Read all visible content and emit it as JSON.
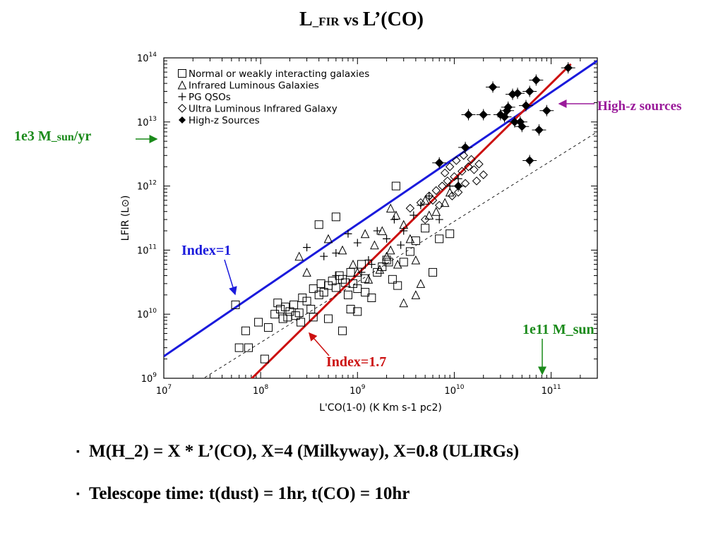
{
  "slide": {
    "title_main": "L",
    "title_sub": "_FIR",
    "title_vs": " vs ",
    "title_rest": "L’(CO)",
    "bullets": [
      "M(H_2) = X * L’(CO),   X=4 (Milkyway), X=0.8 (ULIRGs)",
      "Telescope time: t(dust) = 1hr,  t(CO) = 10hr"
    ],
    "bullet_marks": [
      "▪",
      "▪"
    ]
  },
  "annotations": {
    "sfr_main": "1e3 M",
    "sfr_sub": "_sun",
    "sfr_rest": "/yr",
    "mass": "1e11 M_sun",
    "highz": "High-z sources",
    "index1": "Index=1",
    "index17": "Index=1.7",
    "colors": {
      "green": "#1a8a1a",
      "blue": "#1a1adc",
      "red": "#cc1010",
      "purple": "#9a1a9a"
    }
  },
  "chart_data": {
    "type": "scatter",
    "xlabel": "L'CO(1-0) (K Km s-1 pc2)",
    "ylabel": "LFIR (L⊙)",
    "xscale": "log",
    "yscale": "log",
    "xlim": [
      10000000,
      300000000000
    ],
    "ylim": [
      1000000000,
      100000000000000
    ],
    "xticks": [
      {
        "value": 10000000,
        "base": "10",
        "exp": "7"
      },
      {
        "value": 100000000,
        "base": "10",
        "exp": "8"
      },
      {
        "value": 1000000000,
        "base": "10",
        "exp": "9"
      },
      {
        "value": 10000000000,
        "base": "10",
        "exp": "10"
      },
      {
        "value": 100000000000,
        "base": "10",
        "exp": "11"
      }
    ],
    "yticks": [
      {
        "value": 1000000000,
        "base": "10",
        "exp": "9"
      },
      {
        "value": 10000000000,
        "base": "10",
        "exp": "10"
      },
      {
        "value": 100000000000,
        "base": "10",
        "exp": "11"
      },
      {
        "value": 1000000000000,
        "base": "10",
        "exp": "12"
      },
      {
        "value": 10000000000000,
        "base": "10",
        "exp": "13"
      },
      {
        "value": 100000000000000,
        "base": "10",
        "exp": "14"
      }
    ],
    "legend_position": "top-left",
    "legend": [
      {
        "marker": "square",
        "label": "Normal or weakly interacting galaxies"
      },
      {
        "marker": "triangle",
        "label": "Infrared Luminous Galaxies"
      },
      {
        "marker": "plus",
        "label": "PG QSOs"
      },
      {
        "marker": "diamond",
        "label": "Ultra Luminous Infrared Galaxy"
      },
      {
        "marker": "filled-diamond",
        "label": "High-z Sources"
      }
    ],
    "fit_lines": [
      {
        "name": "Index=1",
        "color": "#1a1adc",
        "points": [
          [
            10000000,
            2200000000
          ],
          [
            300000000000,
            90000000000000
          ]
        ]
      },
      {
        "name": "Index=1.7",
        "color": "#cc1010",
        "points": [
          [
            70000000,
            800000000
          ],
          [
            160000000000,
            80000000000000
          ]
        ]
      },
      {
        "name": "",
        "color": "#222222",
        "style": "dashed",
        "points": [
          [
            15000000,
            600000000
          ],
          [
            300000000000,
            7000000000000
          ]
        ]
      }
    ],
    "series": [
      {
        "name": "Normal or weakly interacting galaxies",
        "marker": "square",
        "points": [
          [
            55000000,
            14000000000
          ],
          [
            70000000,
            5500000000
          ],
          [
            60000000,
            3000000000
          ],
          [
            75000000,
            3000000000
          ],
          [
            110000000,
            2000000000
          ],
          [
            95000000,
            7500000000
          ],
          [
            120000000,
            6200000000
          ],
          [
            140000000,
            10000000000
          ],
          [
            200000000,
            11000000000
          ],
          [
            160000000,
            12000000000
          ],
          [
            170000000,
            8500000000
          ],
          [
            190000000,
            9000000000
          ],
          [
            220000000,
            14000000000
          ],
          [
            250000000,
            10500000000
          ],
          [
            270000000,
            18000000000
          ],
          [
            300000000,
            16000000000
          ],
          [
            330000000,
            12000000000
          ],
          [
            350000000,
            25000000000
          ],
          [
            400000000,
            20000000000
          ],
          [
            420000000,
            30000000000
          ],
          [
            450000000,
            22000000000
          ],
          [
            500000000,
            28000000000
          ],
          [
            550000000,
            33000000000
          ],
          [
            600000000,
            26000000000
          ],
          [
            650000000,
            40000000000
          ],
          [
            700000000,
            35000000000
          ],
          [
            750000000,
            31000000000
          ],
          [
            800000000,
            20000000000
          ],
          [
            850000000,
            45000000000
          ],
          [
            900000000,
            30000000000
          ],
          [
            1000000000,
            25000000000
          ],
          [
            1100000000,
            60000000000
          ],
          [
            1200000000,
            36000000000
          ],
          [
            1400000000,
            18000000000
          ],
          [
            1600000000,
            45000000000
          ],
          [
            1800000000,
            55000000000
          ],
          [
            2000000000,
            70000000000
          ],
          [
            2300000000,
            35000000000
          ],
          [
            2600000000,
            28000000000
          ],
          [
            3000000000,
            65000000000
          ],
          [
            3500000000,
            95000000000
          ],
          [
            4000000000,
            140000000000
          ],
          [
            5000000000,
            220000000000
          ],
          [
            6000000000,
            45000000000
          ],
          [
            7000000000,
            150000000000
          ],
          [
            9000000000,
            180000000000
          ],
          [
            400000000,
            250000000000
          ],
          [
            600000000,
            330000000000
          ],
          [
            2500000000,
            1000000000000
          ],
          [
            180000000,
            13000000000
          ],
          [
            260000000,
            7500000000
          ],
          [
            350000000,
            9000000000
          ],
          [
            500000000,
            8500000000
          ],
          [
            700000000,
            5500000000
          ],
          [
            150000000,
            15000000000
          ],
          [
            230000000,
            9500000000
          ],
          [
            850000000,
            12000000000
          ],
          [
            1000000000,
            11000000000
          ],
          [
            1200000000,
            22000000000
          ],
          [
            2100000000,
            65000000000
          ]
        ]
      },
      {
        "name": "Infrared Luminous Galaxies",
        "marker": "triangle",
        "points": [
          [
            250000000,
            80000000000
          ],
          [
            300000000,
            45000000000
          ],
          [
            500000000,
            150000000000
          ],
          [
            700000000,
            100000000000
          ],
          [
            900000000,
            60000000000
          ],
          [
            1200000000,
            180000000000
          ],
          [
            1500000000,
            120000000000
          ],
          [
            1800000000,
            200000000000
          ],
          [
            2000000000,
            80000000000
          ],
          [
            2500000000,
            350000000000
          ],
          [
            2200000000,
            450000000000
          ],
          [
            3000000000,
            250000000000
          ],
          [
            3500000000,
            150000000000
          ],
          [
            4000000000,
            70000000000
          ],
          [
            4500000000,
            30000000000
          ],
          [
            5000000000,
            600000000000
          ],
          [
            5500000000,
            350000000000
          ],
          [
            6500000000,
            400000000000
          ],
          [
            8000000000,
            550000000000
          ],
          [
            9000000000,
            800000000000
          ],
          [
            3000000000,
            15000000000
          ],
          [
            4000000000,
            20000000000
          ],
          [
            1000000000,
            45000000000
          ],
          [
            1300000000,
            35000000000
          ],
          [
            1700000000,
            50000000000
          ],
          [
            2600000000,
            60000000000
          ],
          [
            2200000000,
            100000000000
          ]
        ]
      },
      {
        "name": "PG QSOs",
        "marker": "plus",
        "points": [
          [
            300000000,
            110000000000
          ],
          [
            450000000,
            80000000000
          ],
          [
            600000000,
            90000000000
          ],
          [
            800000000,
            180000000000
          ],
          [
            1000000000,
            130000000000
          ],
          [
            1300000000,
            70000000000
          ],
          [
            1600000000,
            200000000000
          ],
          [
            2000000000,
            150000000000
          ],
          [
            2400000000,
            300000000000
          ],
          [
            3000000000,
            200000000000
          ],
          [
            3800000000,
            350000000000
          ],
          [
            4500000000,
            500000000000
          ],
          [
            5500000000,
            700000000000
          ],
          [
            7000000000,
            300000000000
          ],
          [
            9000000000,
            1000000000000
          ],
          [
            11000000000,
            1300000000000
          ],
          [
            1100000000,
            45000000000
          ],
          [
            1400000000,
            60000000000
          ],
          [
            2800000000,
            120000000000
          ],
          [
            600000000,
            40000000000
          ]
        ]
      },
      {
        "name": "Ultra Luminous Infrared Galaxy",
        "marker": "diamond",
        "points": [
          [
            3500000000,
            450000000000
          ],
          [
            4500000000,
            550000000000
          ],
          [
            5500000000,
            700000000000
          ],
          [
            6500000000,
            850000000000
          ],
          [
            7500000000,
            1000000000000
          ],
          [
            8500000000,
            1200000000000
          ],
          [
            10000000000,
            1400000000000
          ],
          [
            12000000000,
            1700000000000
          ],
          [
            14000000000,
            2000000000000
          ],
          [
            16000000000,
            1800000000000
          ],
          [
            18000000000,
            2200000000000
          ],
          [
            20000000000,
            1500000000000
          ],
          [
            8000000000,
            1600000000000
          ],
          [
            9000000000,
            2000000000000
          ],
          [
            10500000000,
            2500000000000
          ],
          [
            12500000000,
            3000000000000
          ],
          [
            11000000000,
            800000000000
          ],
          [
            9500000000,
            700000000000
          ],
          [
            13000000000,
            1100000000000
          ],
          [
            7000000000,
            500000000000
          ],
          [
            15000000000,
            2600000000000
          ],
          [
            6000000000,
            600000000000
          ],
          [
            17000000000,
            1200000000000
          ],
          [
            5000000000,
            300000000000
          ]
        ]
      },
      {
        "name": "High-z Sources",
        "marker": "filled-diamond",
        "points": [
          [
            7000000000,
            2300000000000
          ],
          [
            11000000000,
            1000000000000
          ],
          [
            20000000000,
            13000000000000
          ],
          [
            25000000000,
            35000000000000
          ],
          [
            30000000000,
            13000000000000
          ],
          [
            33000000000,
            12000000000000
          ],
          [
            36000000000,
            17000000000000
          ],
          [
            40000000000,
            27000000000000
          ],
          [
            42000000000,
            10000000000000
          ],
          [
            45000000000,
            28000000000000
          ],
          [
            50000000000,
            8500000000000
          ],
          [
            55000000000,
            18000000000000
          ],
          [
            60000000000,
            30000000000000
          ],
          [
            70000000000,
            45000000000000
          ],
          [
            75000000000,
            7500000000000
          ],
          [
            90000000000,
            15000000000000
          ],
          [
            150000000000,
            70000000000000
          ],
          [
            60000000000,
            2500000000000
          ],
          [
            13000000000,
            4000000000000
          ],
          [
            35000000000,
            15000000000000
          ],
          [
            14000000000,
            13000000000000
          ],
          [
            48000000000,
            10000000000000
          ]
        ]
      }
    ]
  }
}
